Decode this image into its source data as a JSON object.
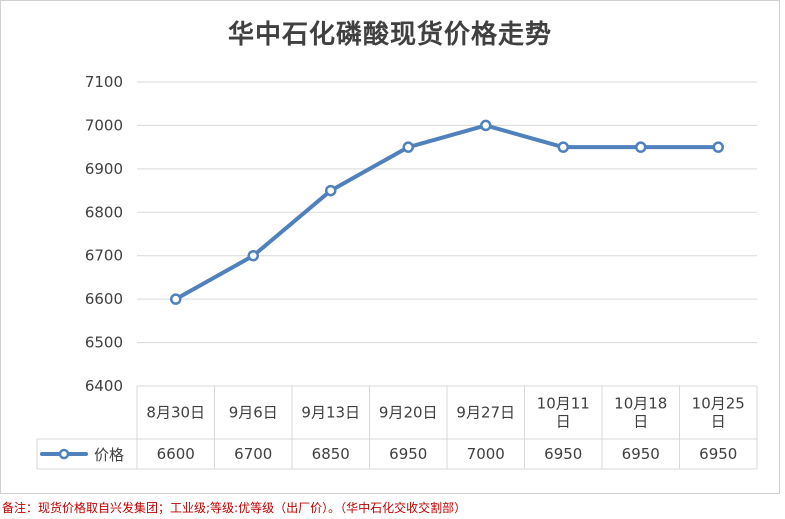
{
  "title": "华中石化磷酸现货价格走势",
  "footnote": "备注：现货价格取自兴发集团；工业级;等级:优等级（出厂价）。（华中石化交收交割部）",
  "colors": {
    "line": "#4f81bd",
    "grid": "#d9d9d9",
    "text": "#404040",
    "footnote": "#c00000"
  },
  "chart_data": {
    "type": "line",
    "categories": [
      [
        "8月30日"
      ],
      [
        "9月6日"
      ],
      [
        "9月13日"
      ],
      [
        "9月20日"
      ],
      [
        "9月27日"
      ],
      [
        "10月11",
        "日"
      ],
      [
        "10月18",
        "日"
      ],
      [
        "10月25",
        "日"
      ]
    ],
    "series": [
      {
        "name": "价格",
        "values": [
          6600,
          6700,
          6850,
          6950,
          7000,
          6950,
          6950,
          6950
        ],
        "marker": "circle"
      }
    ],
    "value_strings": [
      "6600",
      "6700",
      "6850",
      "6950",
      "7000",
      "6950",
      "6950",
      "6950"
    ],
    "ylim": [
      6400,
      7100
    ],
    "yticks": [
      "6400",
      "6500",
      "6600",
      "6700",
      "6800",
      "6900",
      "7000",
      "7100"
    ],
    "grid": true,
    "legend": "data-table-left"
  }
}
